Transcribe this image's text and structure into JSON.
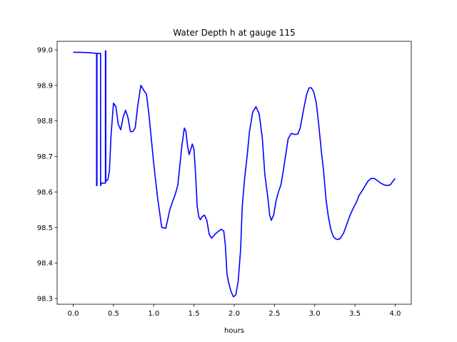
{
  "chart_data": {
    "type": "line",
    "title": "Water Depth h at gauge 115",
    "xlabel": "hours",
    "ylabel": "",
    "xlim": [
      -0.2,
      4.2
    ],
    "ylim": [
      98.284,
      99.024
    ],
    "grid": false,
    "legend": "none",
    "x_ticks": [
      0.0,
      0.5,
      1.0,
      1.5,
      2.0,
      2.5,
      3.0,
      3.5,
      4.0
    ],
    "x_tick_labels": [
      "0.0",
      "0.5",
      "1.0",
      "1.5",
      "2.0",
      "2.5",
      "3.0",
      "3.5",
      "4.0"
    ],
    "y_ticks": [
      98.3,
      98.4,
      98.5,
      98.6,
      98.7,
      98.8,
      98.9,
      99.0
    ],
    "y_tick_labels": [
      "98.3",
      "98.4",
      "98.5",
      "98.6",
      "98.7",
      "98.8",
      "98.9",
      "99.0"
    ],
    "series": [
      {
        "color": "#0000ff",
        "x": [
          0.0,
          0.1,
          0.2,
          0.29,
          0.29,
          0.295,
          0.295,
          0.34,
          0.34,
          0.345,
          0.345,
          0.4,
          0.4,
          0.405,
          0.405,
          0.43,
          0.45,
          0.47,
          0.5,
          0.53,
          0.56,
          0.59,
          0.62,
          0.65,
          0.68,
          0.71,
          0.74,
          0.77,
          0.8,
          0.84,
          0.88,
          0.91,
          0.94,
          0.97,
          1.0,
          1.05,
          1.1,
          1.15,
          1.2,
          1.23,
          1.27,
          1.3,
          1.35,
          1.38,
          1.4,
          1.42,
          1.44,
          1.46,
          1.48,
          1.5,
          1.52,
          1.54,
          1.56,
          1.58,
          1.6,
          1.63,
          1.66,
          1.69,
          1.72,
          1.75,
          1.78,
          1.81,
          1.84,
          1.87,
          1.89,
          1.91,
          1.93,
          1.96,
          1.99,
          2.02,
          2.05,
          2.08,
          2.1,
          2.13,
          2.16,
          2.19,
          2.23,
          2.27,
          2.31,
          2.35,
          2.38,
          2.42,
          2.44,
          2.46,
          2.49,
          2.52,
          2.55,
          2.58,
          2.61,
          2.64,
          2.67,
          2.71,
          2.75,
          2.79,
          2.82,
          2.86,
          2.9,
          2.93,
          2.96,
          2.99,
          3.02,
          3.05,
          3.08,
          3.11,
          3.14,
          3.17,
          3.2,
          3.23,
          3.26,
          3.29,
          3.32,
          3.36,
          3.4,
          3.44,
          3.48,
          3.52,
          3.55,
          3.58,
          3.62,
          3.66,
          3.7,
          3.74,
          3.78,
          3.82,
          3.86,
          3.9,
          3.94,
          3.97,
          4.0
        ],
        "y": [
          98.993,
          98.993,
          98.992,
          98.99,
          98.618,
          98.618,
          98.99,
          98.99,
          98.618,
          98.62,
          98.625,
          98.625,
          98.997,
          98.997,
          98.63,
          98.635,
          98.66,
          98.76,
          98.85,
          98.84,
          98.79,
          98.775,
          98.81,
          98.83,
          98.81,
          98.77,
          98.77,
          98.78,
          98.84,
          98.9,
          98.885,
          98.875,
          98.82,
          98.75,
          98.68,
          98.58,
          98.5,
          98.498,
          98.55,
          98.57,
          98.595,
          98.62,
          98.73,
          98.78,
          98.77,
          98.73,
          98.705,
          98.72,
          98.735,
          98.72,
          98.65,
          98.56,
          98.53,
          98.522,
          98.53,
          98.535,
          98.52,
          98.48,
          98.47,
          98.478,
          98.485,
          98.49,
          98.495,
          98.49,
          98.45,
          98.37,
          98.345,
          98.32,
          98.305,
          98.31,
          98.35,
          98.44,
          98.56,
          98.64,
          98.7,
          98.77,
          98.825,
          98.84,
          98.82,
          98.75,
          98.65,
          98.58,
          98.535,
          98.52,
          98.535,
          98.575,
          98.6,
          98.62,
          98.66,
          98.705,
          98.75,
          98.765,
          98.762,
          98.763,
          98.78,
          98.83,
          98.875,
          98.893,
          98.893,
          98.88,
          98.85,
          98.79,
          98.72,
          98.66,
          98.58,
          98.53,
          98.495,
          98.475,
          98.468,
          98.466,
          98.47,
          98.485,
          98.51,
          98.535,
          98.555,
          98.572,
          98.59,
          98.6,
          98.615,
          98.63,
          98.638,
          98.638,
          98.632,
          98.625,
          98.62,
          98.618,
          98.62,
          98.63,
          98.638
        ]
      }
    ]
  }
}
